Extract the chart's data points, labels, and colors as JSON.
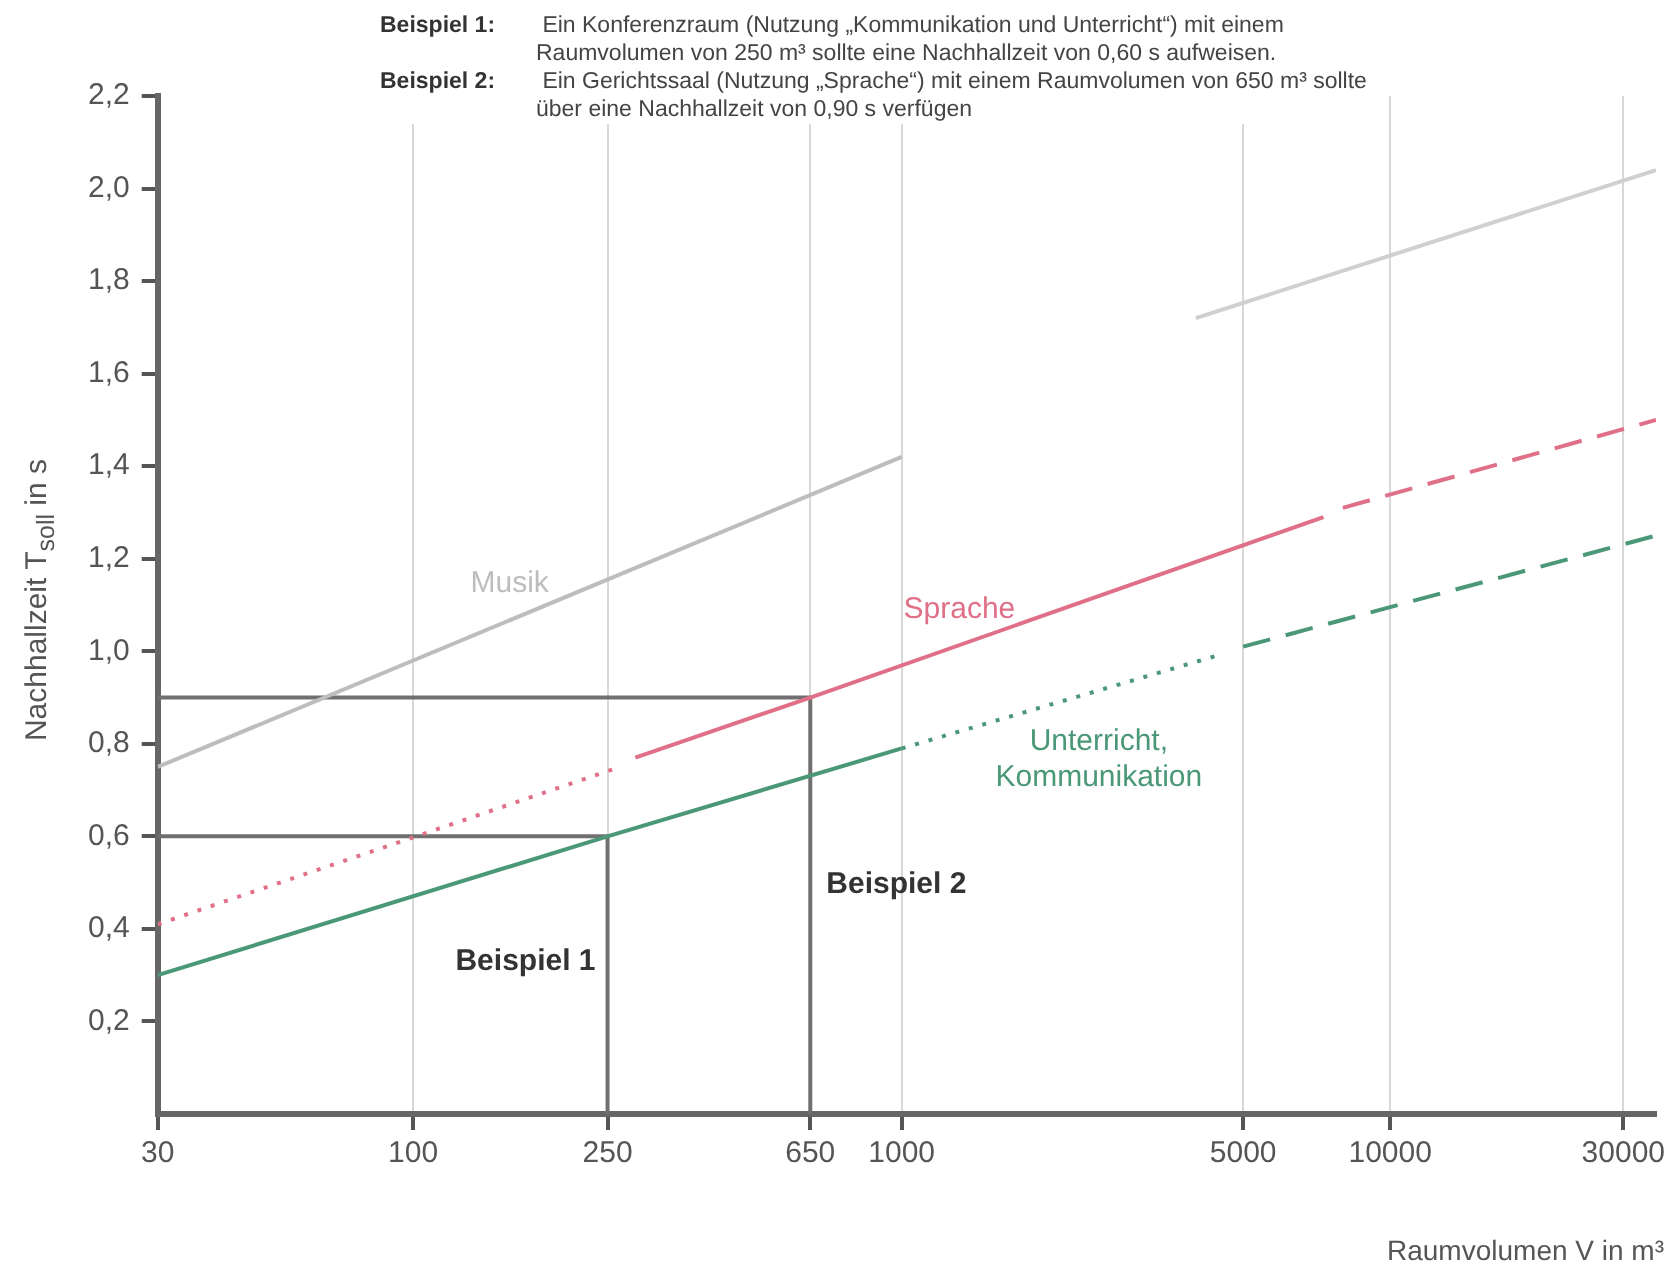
{
  "chart_data": {
    "type": "line",
    "xlabel": "Raumvolumen V in m³",
    "ylabel": "Nachhallzeit T$_{soll}$ in s",
    "log": "x",
    "xlim": [
      30,
      35000
    ],
    "xticks": [
      30,
      100,
      250,
      650,
      1000,
      5000,
      10000,
      30000
    ],
    "ylim": [
      0,
      2.2
    ],
    "yticks": [
      {
        "value": 0.2,
        "label": "0,2"
      },
      {
        "value": 0.4,
        "label": "0,4"
      },
      {
        "value": 0.6,
        "label": "0,6"
      },
      {
        "value": 0.8,
        "label": "0,8"
      },
      {
        "value": 1.0,
        "label": "1,0"
      },
      {
        "value": 1.2,
        "label": "1,2"
      },
      {
        "value": 1.4,
        "label": "1,4"
      },
      {
        "value": 1.6,
        "label": "1,6"
      },
      {
        "value": 1.8,
        "label": "1,8"
      },
      {
        "value": 2.0,
        "label": "2,0"
      },
      {
        "value": 2.2,
        "label": "2,2"
      }
    ],
    "grid": "x",
    "legend": false,
    "marker": "none",
    "series": [
      {
        "name": "Musik",
        "color": "#bdbdbd",
        "x": [
          30,
          1000
        ],
        "values": [
          0.75,
          1.42
        ],
        "line_style": "solid"
      },
      {
        "color": "#d0d0d0",
        "x": [
          4000,
          35000
        ],
        "values": [
          1.72,
          2.04
        ],
        "line_style": "solid"
      },
      {
        "color": "#e07088",
        "x": [
          30,
          265
        ],
        "values": [
          0.41,
          0.75
        ],
        "line_style": "dotted"
      },
      {
        "name": "Sprache",
        "color": "#e07088",
        "x": [
          285,
          650,
          7300
        ],
        "values": [
          0.77,
          0.9,
          1.29
        ],
        "line_style": "solid"
      },
      {
        "color": "#e07088",
        "x": [
          8000,
          35000
        ],
        "values": [
          1.31,
          1.5
        ],
        "line_style": "dashed"
      },
      {
        "color": "#4a9878",
        "x": [
          30,
          250,
          1000
        ],
        "values": [
          0.3,
          0.6,
          0.79
        ],
        "line_style": "solid"
      },
      {
        "name": "Unterricht,\nKommunikation",
        "color": "#4a9878",
        "x": [
          1000,
          4400
        ],
        "values": [
          0.79,
          0.99
        ],
        "line_style": "dotted"
      },
      {
        "color": "#4a9878",
        "x": [
          5000,
          35000
        ],
        "values": [
          1.01,
          1.25
        ],
        "line_style": "dashed"
      },
      {
        "name": "Beispiel 1",
        "color": "#707070",
        "x": [
          30,
          250,
          250
        ],
        "values": [
          0.6,
          0.6,
          0
        ],
        "line_style": "solid"
      },
      {
        "name": "Beispiel 2",
        "color": "#707070",
        "x": [
          30,
          650,
          650
        ],
        "values": [
          0.9,
          0.9,
          0
        ],
        "line_style": "solid"
      }
    ],
    "annotations": [
      "Beispiel 1: Ein Konferenzraum (Nutzung „Kommunikation und Unterricht“) mit einem Raumvolumen von 250 m³ sollte eine Nachhallzeit von 0,60 s aufweisen.",
      "Beispiel 2: Ein Gerichtssaal (Nutzung „Sprache“) mit einem Raumvolumen von 650 m³ sollte über eine Nachhallzeit von 0,90 s verfügen"
    ]
  }
}
